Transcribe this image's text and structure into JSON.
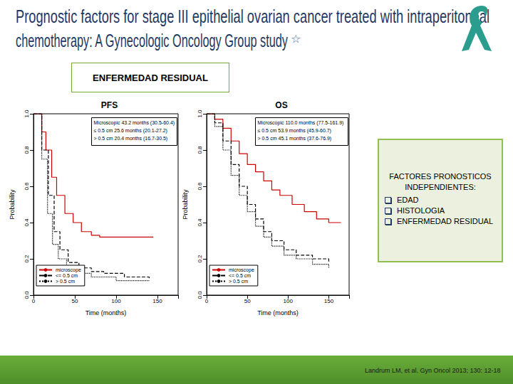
{
  "slide": {
    "title": [
      "Prognostic factors for stage III epithelial ovarian cancer treated with intraperitoneal",
      "chemotherapy: A Gynecologic Oncology Group study"
    ],
    "title_mark": "☆",
    "section_label": "ENFERMEDAD RESIDUAL",
    "factors": {
      "heading": "FACTORES PRONOSTICOS INDEPENDIENTES:",
      "items": [
        "EDAD",
        "HISTOLOGIA",
        "ENFERMEDAD RESIDUAL"
      ]
    },
    "citation": "Landrum LM, et al. Gyn Oncol 2013; 130: 12-18"
  },
  "chart_data": [
    {
      "type": "line",
      "title": "PFS",
      "x_label": "Time (months)",
      "y_label": "Probability",
      "xlim": [
        0,
        175
      ],
      "xticks": [
        0,
        50,
        100,
        150
      ],
      "ylim": [
        0,
        1
      ],
      "yticks": [
        {
          "value": 0,
          "label": "0.0"
        },
        {
          "value": 0.2,
          "label": "0.2"
        },
        {
          "value": 0.4,
          "label": "0.4"
        },
        {
          "value": 0.6,
          "label": "0.6"
        },
        {
          "value": 0.8,
          "label": "0.8"
        },
        {
          "value": 1,
          "label": "1.0"
        }
      ],
      "grid": false,
      "legend": "lower left",
      "annotations": [
        "Microscopic 43.2 months (30.5-60.4)",
        "≤ 0.5 cm 25.6 months (20.1-27.2)",
        "> 0.5 cm 20.4 months (16.7-30.5)"
      ],
      "series": [
        {
          "name": "microscope",
          "color": "#cc0000",
          "line_style": "solid",
          "x": [
            0,
            10,
            15,
            22,
            28,
            38,
            48,
            58,
            70,
            80,
            100,
            145
          ],
          "values": [
            1.0,
            0.9,
            0.8,
            0.65,
            0.55,
            0.45,
            0.4,
            0.35,
            0.33,
            0.32,
            0.32,
            0.32
          ]
        },
        {
          "name": "<= 0.5 cm",
          "color": "#000000",
          "line_style": "dashed",
          "x": [
            0,
            10,
            18,
            25,
            32,
            42,
            55,
            70,
            85,
            110,
            140
          ],
          "values": [
            1.0,
            0.8,
            0.55,
            0.35,
            0.25,
            0.18,
            0.15,
            0.13,
            0.12,
            0.1,
            0.09
          ]
        },
        {
          "name": "> 0.5 cm",
          "color": "#000000",
          "line_style": "dotted",
          "x": [
            0,
            10,
            17,
            23,
            30,
            40,
            55,
            70,
            100,
            140
          ],
          "values": [
            1.0,
            0.75,
            0.45,
            0.28,
            0.2,
            0.15,
            0.12,
            0.1,
            0.08,
            0.08
          ]
        }
      ]
    },
    {
      "type": "line",
      "title": "OS",
      "x_label": "Time (months)",
      "y_label": "Probability",
      "xlim": [
        0,
        175
      ],
      "xticks": [
        0,
        50,
        100,
        150
      ],
      "ylim": [
        0,
        1
      ],
      "yticks": [
        {
          "value": 0,
          "label": "0.0"
        },
        {
          "value": 0.2,
          "label": "0.2"
        },
        {
          "value": 0.4,
          "label": "0.4"
        },
        {
          "value": 0.6,
          "label": "0.6"
        },
        {
          "value": 0.8,
          "label": "0.8"
        },
        {
          "value": 1,
          "label": "1.0"
        }
      ],
      "grid": false,
      "legend": "lower left",
      "annotations": [
        "Microscopic 110.0 months (77.5-161.9)",
        "≤ 0.5 cm 53.9 months (45.9-60.7)",
        "> 0.5 cm 45.1 months (37.6-76.9)"
      ],
      "series": [
        {
          "name": "microscope",
          "color": "#cc0000",
          "line_style": "solid",
          "x": [
            0,
            10,
            20,
            30,
            40,
            50,
            60,
            70,
            80,
            90,
            105,
            120,
            135,
            150,
            165
          ],
          "values": [
            1.0,
            0.97,
            0.92,
            0.85,
            0.78,
            0.72,
            0.68,
            0.63,
            0.58,
            0.55,
            0.5,
            0.46,
            0.42,
            0.4,
            0.4
          ]
        },
        {
          "name": "<= 0.5 cm",
          "color": "#000000",
          "line_style": "dashed",
          "x": [
            0,
            10,
            20,
            30,
            40,
            50,
            60,
            70,
            80,
            95,
            110,
            130,
            150
          ],
          "values": [
            1.0,
            0.95,
            0.85,
            0.72,
            0.6,
            0.5,
            0.42,
            0.35,
            0.3,
            0.25,
            0.22,
            0.2,
            0.18
          ]
        },
        {
          "name": "> 0.5 cm",
          "color": "#000000",
          "line_style": "dotted",
          "x": [
            0,
            10,
            20,
            30,
            40,
            50,
            60,
            70,
            80,
            95,
            110,
            130,
            150
          ],
          "values": [
            1.0,
            0.93,
            0.8,
            0.66,
            0.55,
            0.46,
            0.38,
            0.32,
            0.27,
            0.22,
            0.2,
            0.17,
            0.15
          ]
        }
      ]
    }
  ]
}
